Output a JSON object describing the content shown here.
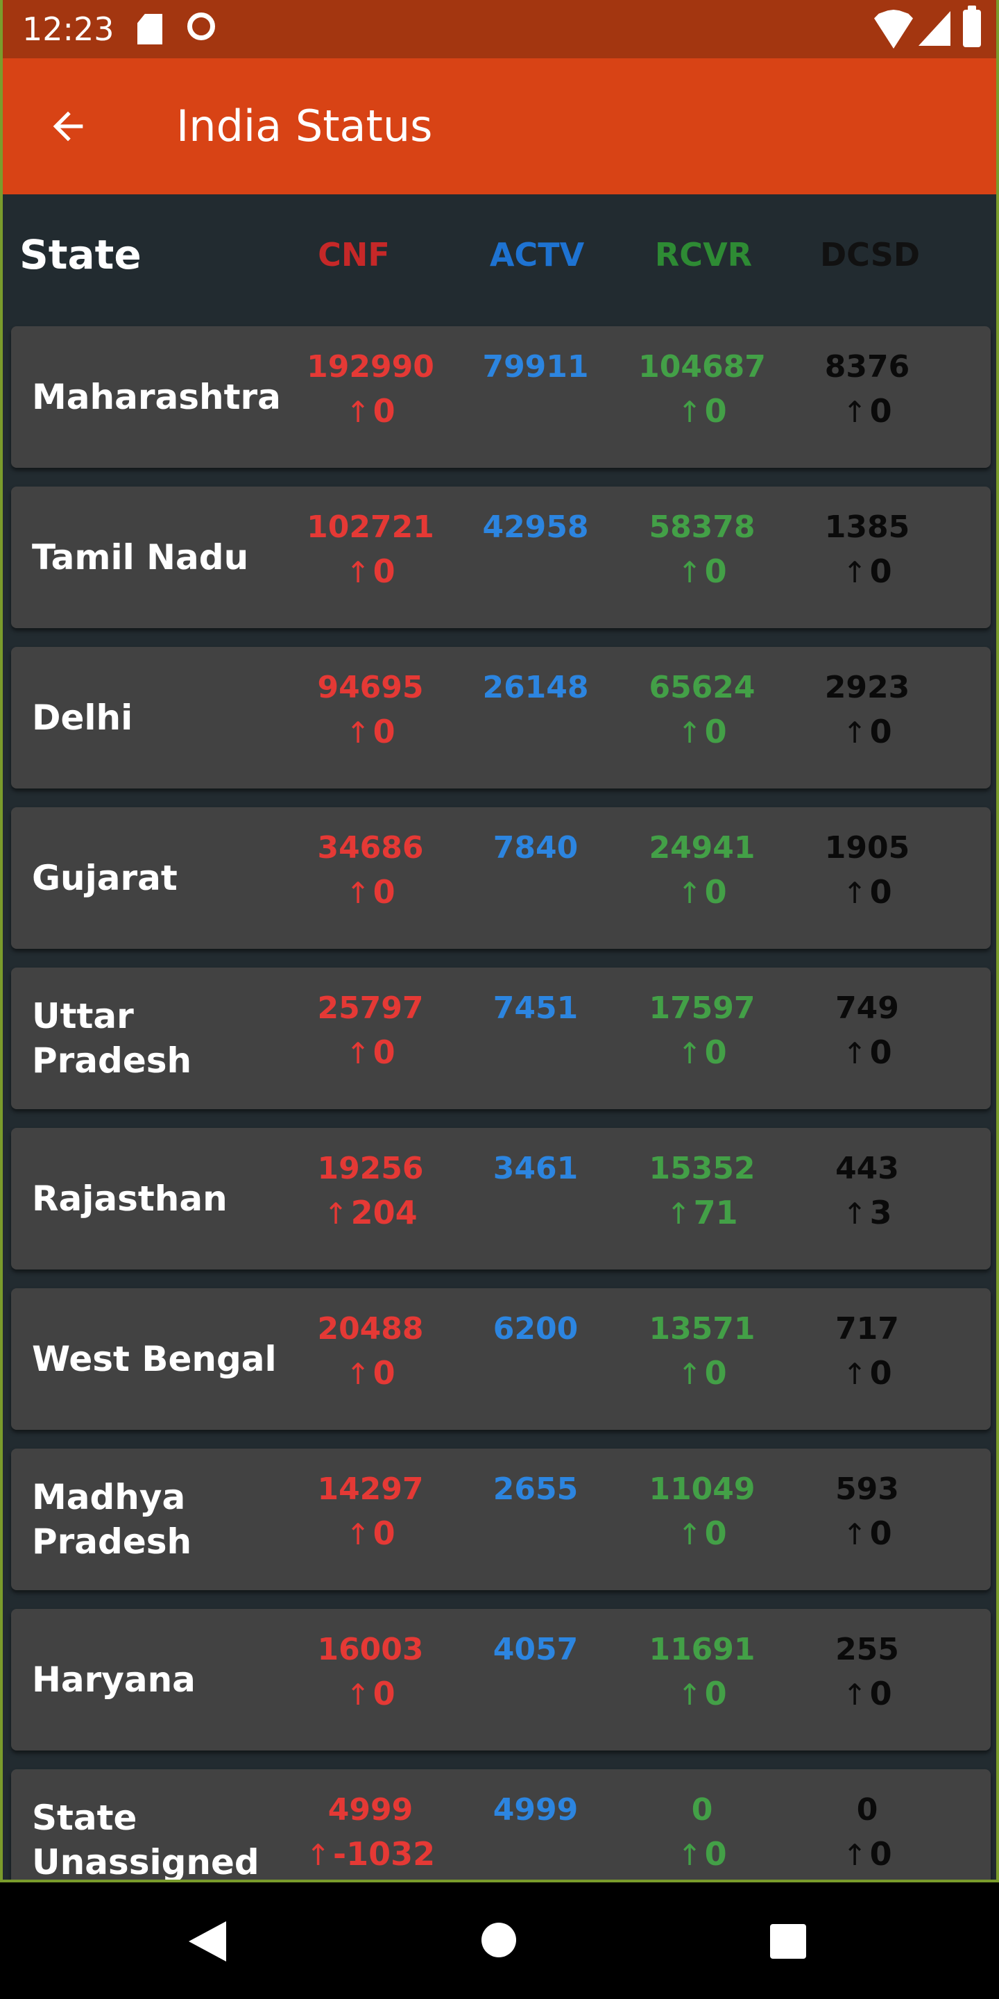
{
  "status_bar": {
    "time": "12:23"
  },
  "app_bar": {
    "title": "India Status"
  },
  "columns": {
    "state": "State",
    "cnf": "CNF",
    "actv": "ACTV",
    "rcvr": "RCVR",
    "dcsd": "DCSD"
  },
  "colors": {
    "app_bar": "#d84315",
    "status_bar": "#a33610",
    "background": "#222b30",
    "card": "#424242",
    "cnf": "#e53935",
    "actv": "#2c85e0",
    "rcvr": "#43a047",
    "dcsd": "#0a0a0a"
  },
  "icons": {
    "delta": "arrow-up-icon",
    "back": "arrow-left-icon"
  },
  "rows": [
    {
      "state": "Maharashtra",
      "cnf": "192990",
      "cnf_delta": "0",
      "actv": "79911",
      "rcvr": "104687",
      "rcvr_delta": "0",
      "dcsd": "8376",
      "dcsd_delta": "0"
    },
    {
      "state": "Tamil Nadu",
      "cnf": "102721",
      "cnf_delta": "0",
      "actv": "42958",
      "rcvr": "58378",
      "rcvr_delta": "0",
      "dcsd": "1385",
      "dcsd_delta": "0"
    },
    {
      "state": "Delhi",
      "cnf": "94695",
      "cnf_delta": "0",
      "actv": "26148",
      "rcvr": "65624",
      "rcvr_delta": "0",
      "dcsd": "2923",
      "dcsd_delta": "0"
    },
    {
      "state": "Gujarat",
      "cnf": "34686",
      "cnf_delta": "0",
      "actv": "7840",
      "rcvr": "24941",
      "rcvr_delta": "0",
      "dcsd": "1905",
      "dcsd_delta": "0"
    },
    {
      "state": "Uttar Pradesh",
      "cnf": "25797",
      "cnf_delta": "0",
      "actv": "7451",
      "rcvr": "17597",
      "rcvr_delta": "0",
      "dcsd": "749",
      "dcsd_delta": "0"
    },
    {
      "state": "Rajasthan",
      "cnf": "19256",
      "cnf_delta": "204",
      "actv": "3461",
      "rcvr": "15352",
      "rcvr_delta": "71",
      "dcsd": "443",
      "dcsd_delta": "3"
    },
    {
      "state": "West Bengal",
      "cnf": "20488",
      "cnf_delta": "0",
      "actv": "6200",
      "rcvr": "13571",
      "rcvr_delta": "0",
      "dcsd": "717",
      "dcsd_delta": "0"
    },
    {
      "state": "Madhya Pradesh",
      "cnf": "14297",
      "cnf_delta": "0",
      "actv": "2655",
      "rcvr": "11049",
      "rcvr_delta": "0",
      "dcsd": "593",
      "dcsd_delta": "0"
    },
    {
      "state": "Haryana",
      "cnf": "16003",
      "cnf_delta": "0",
      "actv": "4057",
      "rcvr": "11691",
      "rcvr_delta": "0",
      "dcsd": "255",
      "dcsd_delta": "0"
    },
    {
      "state": "State Unassigned",
      "cnf": "4999",
      "cnf_delta": "-1032",
      "actv": "4999",
      "rcvr": "0",
      "rcvr_delta": "0",
      "dcsd": "0",
      "dcsd_delta": "0"
    }
  ]
}
